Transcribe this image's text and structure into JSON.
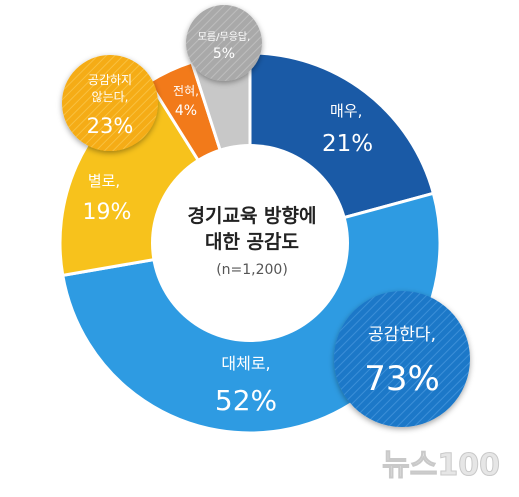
{
  "chart_data": {
    "type": "pie",
    "title": "경기교육 방향에",
    "title_line2": "대한 공감도",
    "subtitle": "(n=1,200)",
    "slices": [
      {
        "label": "매우,",
        "value_label": "21%",
        "value": 21,
        "color": "#1a5aa6"
      },
      {
        "label": "대체로,",
        "value_label": "52%",
        "value": 52,
        "color": "#2e9be2"
      },
      {
        "label": "별로,",
        "value_label": "19%",
        "value": 19,
        "color": "#f7c21c"
      },
      {
        "label": "전혀,",
        "value_label": "4%",
        "value": 4,
        "color": "#f27a1a"
      },
      {
        "label": "모름/무응답,",
        "value_label": "5%",
        "value": 5,
        "color": "#c8c8c8"
      }
    ],
    "groups": [
      {
        "label": "공감한다,",
        "value_label": "73%",
        "value": 73,
        "color": "#1f78c8"
      },
      {
        "label": "공감하지 않는다,",
        "label_line1": "공감하지",
        "label_line2": "않는다,",
        "value_label": "23%",
        "value": 23,
        "color": "#f7b016"
      }
    ]
  },
  "watermark": "뉴스100"
}
